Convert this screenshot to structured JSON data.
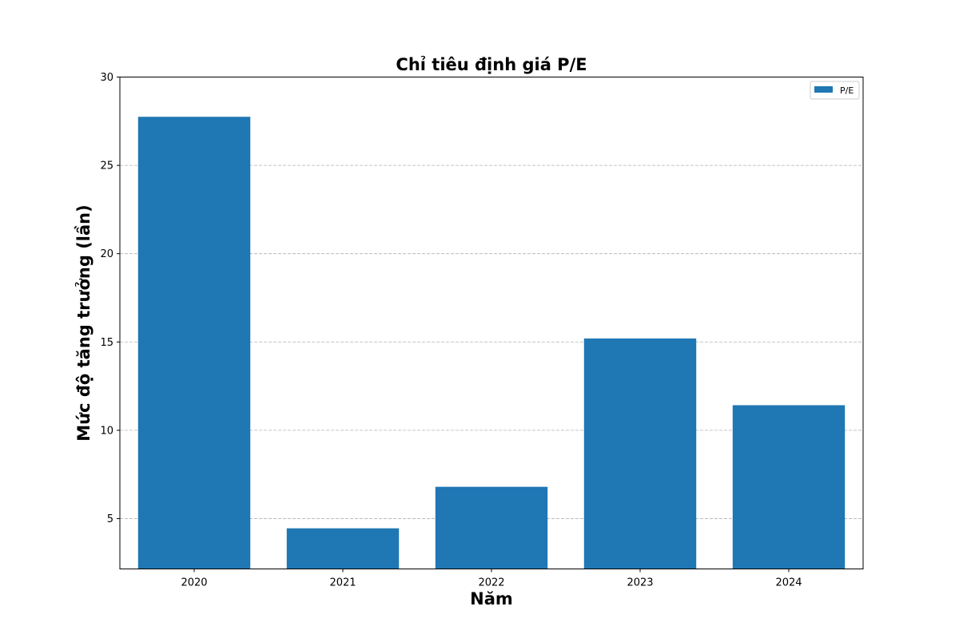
{
  "chart_data": {
    "type": "bar",
    "title": "Chỉ tiêu định giá P/E",
    "xlabel": "Năm",
    "ylabel": "Mức độ tăng trưởng (lần)",
    "categories": [
      "2020",
      "2021",
      "2022",
      "2023",
      "2024"
    ],
    "series": [
      {
        "name": "P/E",
        "values": [
          27.75,
          4.45,
          6.8,
          15.2,
          11.42
        ],
        "color": "#1f77b4"
      }
    ],
    "ylim": [
      2.15,
      30
    ],
    "yticks": [
      5,
      10,
      15,
      20,
      25,
      30
    ],
    "grid": "y-dashed",
    "legend_position": "top-right"
  }
}
